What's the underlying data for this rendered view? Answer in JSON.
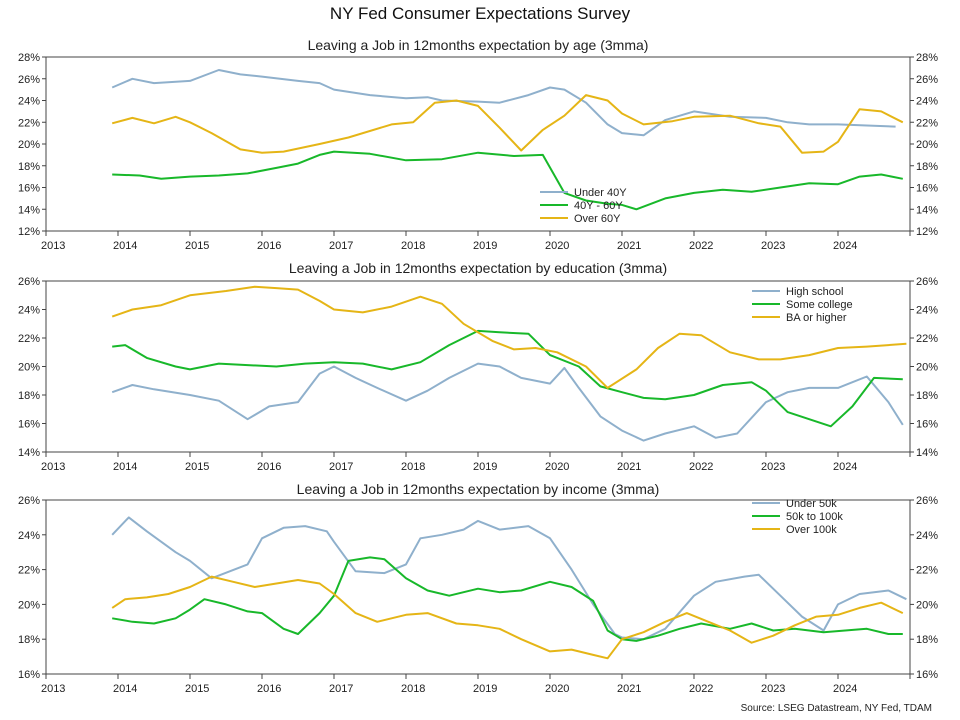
{
  "title": "NY Fed Consumer Expectations Survey",
  "source": "Source: LSEG Datastream, NY Fed, TDAM",
  "colors": {
    "blue": "#8fb0cc",
    "green": "#18b82a",
    "gold": "#e5b516"
  },
  "chart_data": [
    {
      "type": "line",
      "title": "Leaving a Job in 12months expectation by age (3mma)",
      "x_ticks": [
        "2013",
        "2014",
        "2015",
        "2016",
        "2017",
        "2018",
        "2019",
        "2020",
        "2021",
        "2022",
        "2023",
        "2024"
      ],
      "xlim": [
        2013.0,
        2025.0
      ],
      "ylim": [
        12,
        28
      ],
      "y_ticks": [
        12,
        14,
        16,
        18,
        20,
        22,
        24,
        26,
        28
      ],
      "y_unit": "%",
      "legend_position": "bottom-center",
      "series": [
        {
          "name": "Under 40Y",
          "color": "blue",
          "x": [
            2013.92,
            2014.2,
            2014.5,
            2015.0,
            2015.4,
            2015.7,
            2016.0,
            2016.5,
            2016.8,
            2017.0,
            2017.5,
            2018.0,
            2018.3,
            2018.5,
            2019.0,
            2019.3,
            2019.7,
            2020.0,
            2020.2,
            2020.5,
            2020.8,
            2021.0,
            2021.3,
            2021.6,
            2022.0,
            2022.5,
            2023.0,
            2023.3,
            2023.6,
            2024.0,
            2024.4,
            2024.8
          ],
          "y": [
            25.2,
            26.0,
            25.6,
            25.8,
            26.8,
            26.4,
            26.2,
            25.8,
            25.6,
            25.0,
            24.5,
            24.2,
            24.3,
            24.0,
            23.9,
            23.8,
            24.5,
            25.2,
            25.0,
            23.8,
            21.8,
            21.0,
            20.8,
            22.2,
            23.0,
            22.5,
            22.4,
            22.0,
            21.8,
            21.8,
            21.7,
            21.6
          ]
        },
        {
          "name": "40Y - 60Y",
          "color": "green",
          "x": [
            2013.92,
            2014.3,
            2014.6,
            2015.0,
            2015.4,
            2015.8,
            2016.2,
            2016.5,
            2016.8,
            2017.0,
            2017.5,
            2018.0,
            2018.5,
            2019.0,
            2019.5,
            2019.9,
            2020.2,
            2020.5,
            2020.8,
            2021.0,
            2021.2,
            2021.6,
            2022.0,
            2022.4,
            2022.8,
            2023.2,
            2023.6,
            2024.0,
            2024.3,
            2024.6,
            2024.9
          ],
          "y": [
            17.2,
            17.1,
            16.8,
            17.0,
            17.1,
            17.3,
            17.8,
            18.2,
            19.0,
            19.3,
            19.1,
            18.5,
            18.6,
            19.2,
            18.9,
            19.0,
            15.5,
            14.8,
            14.5,
            14.4,
            14.0,
            15.0,
            15.5,
            15.8,
            15.6,
            16.0,
            16.4,
            16.3,
            17.0,
            17.2,
            16.8
          ]
        },
        {
          "name": "Over 60Y",
          "color": "gold",
          "x": [
            2013.92,
            2014.2,
            2014.5,
            2014.8,
            2015.0,
            2015.3,
            2015.7,
            2016.0,
            2016.3,
            2016.8,
            2017.2,
            2017.8,
            2018.1,
            2018.4,
            2018.7,
            2019.0,
            2019.3,
            2019.6,
            2019.9,
            2020.2,
            2020.5,
            2020.8,
            2021.0,
            2021.3,
            2021.7,
            2022.0,
            2022.5,
            2022.9,
            2023.2,
            2023.5,
            2023.8,
            2024.0,
            2024.3,
            2024.6,
            2024.9
          ],
          "y": [
            21.9,
            22.4,
            21.9,
            22.5,
            22.0,
            21.0,
            19.5,
            19.2,
            19.3,
            20.0,
            20.6,
            21.8,
            22.0,
            23.8,
            24.0,
            23.5,
            21.5,
            19.4,
            21.3,
            22.6,
            24.5,
            24.0,
            22.8,
            21.8,
            22.1,
            22.5,
            22.6,
            21.9,
            21.6,
            19.2,
            19.3,
            20.2,
            23.2,
            23.0,
            22.0
          ]
        }
      ]
    },
    {
      "type": "line",
      "title": "Leaving a Job in 12months expectation by education (3mma)",
      "x_ticks": [
        "2013",
        "2014",
        "2015",
        "2016",
        "2017",
        "2018",
        "2019",
        "2020",
        "2021",
        "2022",
        "2023",
        "2024"
      ],
      "xlim": [
        2013.0,
        2025.0
      ],
      "ylim": [
        14,
        26
      ],
      "y_ticks": [
        14,
        16,
        18,
        20,
        22,
        24,
        26
      ],
      "y_unit": "%",
      "legend_position": "top-right",
      "series": [
        {
          "name": "High school",
          "color": "blue",
          "x": [
            2013.92,
            2014.2,
            2014.5,
            2015.0,
            2015.4,
            2015.8,
            2016.1,
            2016.5,
            2016.8,
            2017.0,
            2017.3,
            2017.6,
            2018.0,
            2018.3,
            2018.6,
            2019.0,
            2019.3,
            2019.6,
            2020.0,
            2020.2,
            2020.4,
            2020.7,
            2021.0,
            2021.3,
            2021.6,
            2022.0,
            2022.3,
            2022.6,
            2023.0,
            2023.3,
            2023.6,
            2024.0,
            2024.4,
            2024.7,
            2024.9
          ],
          "y": [
            18.2,
            18.7,
            18.4,
            18.0,
            17.6,
            16.3,
            17.2,
            17.5,
            19.5,
            20.0,
            19.2,
            18.5,
            17.6,
            18.3,
            19.2,
            20.2,
            20.0,
            19.2,
            18.8,
            19.9,
            18.5,
            16.5,
            15.5,
            14.8,
            15.3,
            15.8,
            15.0,
            15.3,
            17.5,
            18.2,
            18.5,
            18.5,
            19.3,
            17.5,
            15.9
          ]
        },
        {
          "name": "Some college",
          "color": "green",
          "x": [
            2013.92,
            2014.1,
            2014.4,
            2014.8,
            2015.0,
            2015.4,
            2015.8,
            2016.2,
            2016.6,
            2017.0,
            2017.4,
            2017.8,
            2018.2,
            2018.6,
            2019.0,
            2019.3,
            2019.7,
            2020.0,
            2020.4,
            2020.7,
            2021.0,
            2021.3,
            2021.6,
            2022.0,
            2022.4,
            2022.8,
            2023.0,
            2023.3,
            2023.6,
            2023.9,
            2024.2,
            2024.5,
            2024.9
          ],
          "y": [
            21.4,
            21.5,
            20.6,
            20.0,
            19.8,
            20.2,
            20.1,
            20.0,
            20.2,
            20.3,
            20.2,
            19.8,
            20.3,
            21.5,
            22.5,
            22.4,
            22.3,
            20.8,
            20.0,
            18.6,
            18.2,
            17.8,
            17.7,
            18.0,
            18.7,
            18.9,
            18.3,
            16.8,
            16.3,
            15.8,
            17.2,
            19.2,
            19.1
          ]
        },
        {
          "name": "BA or higher",
          "color": "gold",
          "x": [
            2013.92,
            2014.2,
            2014.6,
            2015.0,
            2015.5,
            2015.9,
            2016.2,
            2016.5,
            2016.8,
            2017.0,
            2017.4,
            2017.8,
            2018.2,
            2018.5,
            2018.8,
            2019.2,
            2019.5,
            2019.8,
            2020.1,
            2020.5,
            2020.8,
            2021.2,
            2021.5,
            2021.8,
            2022.1,
            2022.5,
            2022.9,
            2023.2,
            2023.6,
            2024.0,
            2024.4,
            2024.7,
            2024.95
          ],
          "y": [
            23.5,
            24.0,
            24.3,
            25.0,
            25.3,
            25.6,
            25.5,
            25.4,
            24.6,
            24.0,
            23.8,
            24.2,
            24.9,
            24.4,
            23.0,
            21.8,
            21.2,
            21.3,
            21.0,
            20.0,
            18.5,
            19.8,
            21.3,
            22.3,
            22.2,
            21.0,
            20.5,
            20.5,
            20.8,
            21.3,
            21.4,
            21.5,
            21.6
          ]
        }
      ]
    },
    {
      "type": "line",
      "title": "Leaving a Job in 12months expectation by income (3mma)",
      "x_ticks": [
        "2013",
        "2014",
        "2015",
        "2016",
        "2017",
        "2018",
        "2019",
        "2020",
        "2021",
        "2022",
        "2023",
        "2024"
      ],
      "xlim": [
        2013.0,
        2025.0
      ],
      "ylim": [
        16,
        26
      ],
      "y_ticks": [
        16,
        18,
        20,
        22,
        24,
        26
      ],
      "y_unit": "%",
      "legend_position": "top-right",
      "series": [
        {
          "name": "Under 50k",
          "color": "blue",
          "x": [
            2013.92,
            2014.15,
            2014.4,
            2014.8,
            2015.0,
            2015.3,
            2015.8,
            2016.0,
            2016.3,
            2016.6,
            2016.9,
            2017.0,
            2017.3,
            2017.7,
            2018.0,
            2018.2,
            2018.5,
            2018.8,
            2019.0,
            2019.3,
            2019.7,
            2020.0,
            2020.3,
            2020.6,
            2020.9,
            2021.0,
            2021.3,
            2021.6,
            2022.0,
            2022.3,
            2022.7,
            2022.9,
            2023.2,
            2023.5,
            2023.8,
            2024.0,
            2024.3,
            2024.7,
            2024.95
          ],
          "y": [
            24.0,
            25.0,
            24.2,
            23.0,
            22.5,
            21.5,
            22.3,
            23.8,
            24.4,
            24.5,
            24.2,
            23.6,
            21.9,
            21.8,
            22.3,
            23.8,
            24.0,
            24.3,
            24.8,
            24.3,
            24.5,
            23.8,
            22.0,
            20.0,
            18.3,
            18.1,
            18.0,
            18.6,
            20.5,
            21.3,
            21.6,
            21.7,
            20.5,
            19.3,
            18.5,
            20.0,
            20.6,
            20.8,
            20.3
          ]
        },
        {
          "name": "50k to 100k",
          "color": "green",
          "x": [
            2013.92,
            2014.2,
            2014.5,
            2014.8,
            2015.0,
            2015.2,
            2015.5,
            2015.8,
            2016.0,
            2016.3,
            2016.5,
            2016.8,
            2017.0,
            2017.2,
            2017.5,
            2017.7,
            2018.0,
            2018.3,
            2018.6,
            2019.0,
            2019.3,
            2019.6,
            2020.0,
            2020.3,
            2020.6,
            2020.8,
            2021.0,
            2021.2,
            2021.5,
            2021.8,
            2022.1,
            2022.5,
            2022.8,
            2023.1,
            2023.4,
            2023.8,
            2024.1,
            2024.4,
            2024.7,
            2024.9
          ],
          "y": [
            19.2,
            19.0,
            18.9,
            19.2,
            19.7,
            20.3,
            20.0,
            19.6,
            19.5,
            18.6,
            18.3,
            19.5,
            20.5,
            22.5,
            22.7,
            22.6,
            21.5,
            20.8,
            20.5,
            20.9,
            20.7,
            20.8,
            21.3,
            21.0,
            20.2,
            18.5,
            18.0,
            17.9,
            18.2,
            18.6,
            18.9,
            18.6,
            18.9,
            18.5,
            18.6,
            18.4,
            18.5,
            18.6,
            18.3,
            18.3
          ]
        },
        {
          "name": "Over 100k",
          "color": "gold",
          "x": [
            2013.92,
            2014.1,
            2014.4,
            2014.7,
            2015.0,
            2015.3,
            2015.6,
            2015.9,
            2016.2,
            2016.5,
            2016.8,
            2017.0,
            2017.3,
            2017.6,
            2018.0,
            2018.3,
            2018.7,
            2019.0,
            2019.3,
            2019.6,
            2020.0,
            2020.3,
            2020.6,
            2020.8,
            2021.0,
            2021.3,
            2021.6,
            2021.9,
            2022.2,
            2022.5,
            2022.8,
            2023.1,
            2023.4,
            2023.7,
            2024.0,
            2024.3,
            2024.6,
            2024.9
          ],
          "y": [
            19.8,
            20.3,
            20.4,
            20.6,
            21.0,
            21.6,
            21.3,
            21.0,
            21.2,
            21.4,
            21.2,
            20.6,
            19.5,
            19.0,
            19.4,
            19.5,
            18.9,
            18.8,
            18.6,
            18.0,
            17.3,
            17.4,
            17.1,
            16.9,
            18.0,
            18.4,
            19.0,
            19.5,
            19.0,
            18.5,
            17.8,
            18.2,
            18.8,
            19.3,
            19.4,
            19.8,
            20.1,
            19.5
          ]
        }
      ]
    }
  ]
}
